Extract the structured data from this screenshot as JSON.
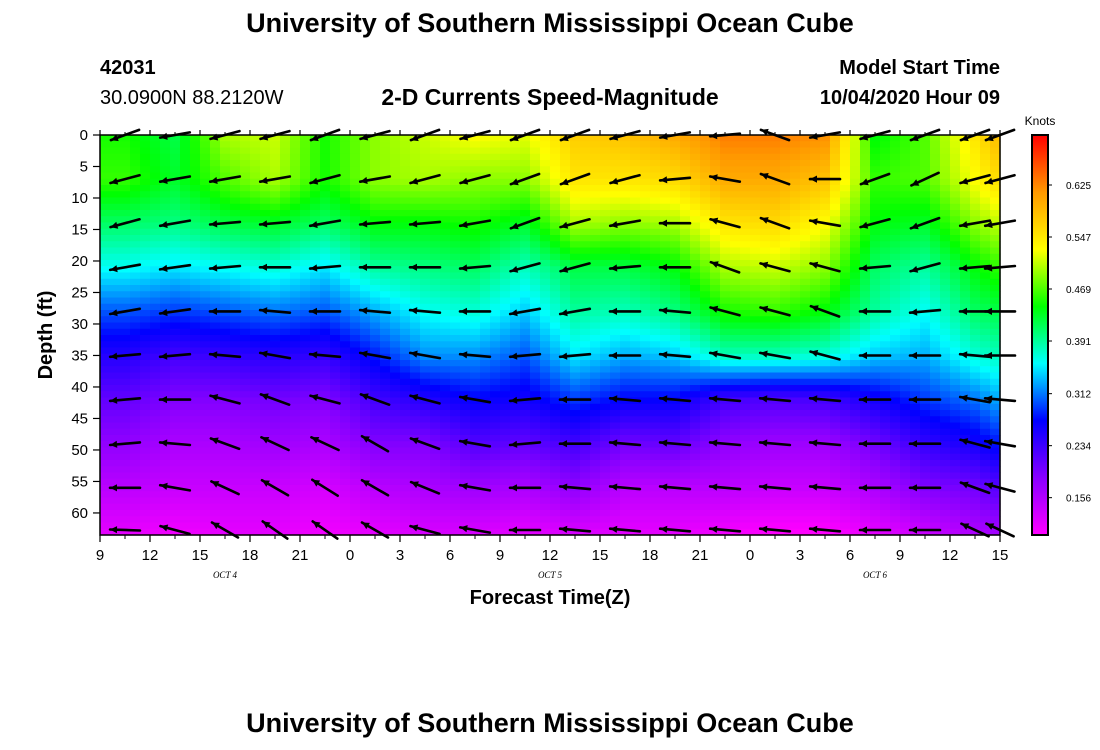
{
  "header": {
    "title": "University of Southern Mississippi Ocean Cube",
    "station_id": "42031",
    "station_position": "30.0900N 88.2120W",
    "subtitle": "2-D Currents Speed-Magnitude",
    "model_start_label": "Model Start Time",
    "model_start_value": "10/04/2020 Hour 09"
  },
  "footer": {
    "title": "University of Southern Mississippi Ocean Cube"
  },
  "chart_data": {
    "type": "heatmap",
    "title": "2-D Currents Speed-Magnitude",
    "xlabel": "Forecast Time(Z)",
    "ylabel": "Depth (ft)",
    "x_tick_labels": [
      "9",
      "12",
      "15",
      "18",
      "21",
      "0",
      "3",
      "6",
      "9",
      "12",
      "15",
      "18",
      "21",
      "0",
      "3",
      "6",
      "9",
      "12",
      "15"
    ],
    "x_hours": [
      0,
      3,
      6,
      9,
      12,
      15,
      18,
      21,
      24,
      27,
      30,
      33,
      36,
      39,
      42,
      45,
      48,
      51,
      54
    ],
    "day_labels": [
      {
        "text": "OCT 4",
        "hour": 7.5
      },
      {
        "text": "OCT 5",
        "hour": 27
      },
      {
        "text": "OCT 6",
        "hour": 46.5
      }
    ],
    "y_ticks": [
      0,
      5,
      10,
      15,
      20,
      25,
      30,
      35,
      40,
      45,
      50,
      55,
      60
    ],
    "ylim": [
      0,
      63.5
    ],
    "y_inverted": true,
    "colorbar": {
      "title": "Knots",
      "tick_values": [
        0.625,
        0.547,
        0.469,
        0.391,
        0.312,
        0.234,
        0.156
      ],
      "tick_labels": [
        "0.625",
        "0.547",
        "0.469",
        "0.391",
        "0.312",
        "0.234",
        "0.156"
      ],
      "range": [
        0.1,
        0.7
      ],
      "colormap": [
        "#ff00ff",
        "#8800ff",
        "#0000ff",
        "#00ffff",
        "#00ff00",
        "#ffff00",
        "#ff9900",
        "#ff0000"
      ]
    },
    "speed_grid": {
      "hours": [
        1.5,
        4.5,
        7.5,
        10.5,
        13.5,
        16.5,
        19.5,
        22.5,
        25.5,
        28.5,
        31.5,
        34.5,
        37.5,
        40.5,
        43.5,
        46.5,
        49.5,
        52.5,
        54
      ],
      "depths": [
        0,
        7,
        14,
        21,
        28,
        35,
        42,
        49,
        56,
        63
      ],
      "values": [
        [
          0.45,
          0.46,
          0.41,
          0.36,
          0.3,
          0.25,
          0.21,
          0.18,
          0.15,
          0.12
        ],
        [
          0.42,
          0.43,
          0.4,
          0.35,
          0.29,
          0.23,
          0.19,
          0.16,
          0.14,
          0.11
        ],
        [
          0.5,
          0.47,
          0.42,
          0.36,
          0.3,
          0.24,
          0.19,
          0.16,
          0.14,
          0.12
        ],
        [
          0.51,
          0.5,
          0.43,
          0.37,
          0.31,
          0.25,
          0.2,
          0.17,
          0.14,
          0.12
        ],
        [
          0.45,
          0.45,
          0.41,
          0.35,
          0.3,
          0.24,
          0.19,
          0.16,
          0.13,
          0.11
        ],
        [
          0.49,
          0.49,
          0.44,
          0.39,
          0.33,
          0.28,
          0.23,
          0.19,
          0.15,
          0.12
        ],
        [
          0.51,
          0.5,
          0.44,
          0.4,
          0.36,
          0.32,
          0.25,
          0.19,
          0.16,
          0.13
        ],
        [
          0.53,
          0.49,
          0.45,
          0.41,
          0.37,
          0.32,
          0.27,
          0.22,
          0.17,
          0.13
        ],
        [
          0.52,
          0.49,
          0.43,
          0.38,
          0.34,
          0.3,
          0.26,
          0.21,
          0.16,
          0.12
        ],
        [
          0.57,
          0.55,
          0.5,
          0.42,
          0.39,
          0.35,
          0.29,
          0.23,
          0.18,
          0.13
        ],
        [
          0.58,
          0.55,
          0.49,
          0.42,
          0.38,
          0.33,
          0.27,
          0.2,
          0.15,
          0.12
        ],
        [
          0.6,
          0.56,
          0.5,
          0.44,
          0.4,
          0.34,
          0.27,
          0.21,
          0.15,
          0.12
        ],
        [
          0.63,
          0.6,
          0.55,
          0.5,
          0.45,
          0.38,
          0.23,
          0.18,
          0.15,
          0.11
        ],
        [
          0.63,
          0.6,
          0.56,
          0.51,
          0.46,
          0.38,
          0.22,
          0.17,
          0.14,
          0.1
        ],
        [
          0.62,
          0.58,
          0.53,
          0.49,
          0.44,
          0.37,
          0.23,
          0.17,
          0.14,
          0.1
        ],
        [
          0.44,
          0.46,
          0.44,
          0.41,
          0.39,
          0.34,
          0.26,
          0.2,
          0.16,
          0.12
        ],
        [
          0.47,
          0.47,
          0.43,
          0.39,
          0.36,
          0.33,
          0.29,
          0.24,
          0.19,
          0.14
        ],
        [
          0.55,
          0.53,
          0.49,
          0.44,
          0.41,
          0.37,
          0.31,
          0.26,
          0.2,
          0.16
        ],
        [
          0.59,
          0.56,
          0.51,
          0.46,
          0.42,
          0.38,
          0.33,
          0.28,
          0.22,
          0.17
        ]
      ]
    },
    "vectors": {
      "hours": [
        1.5,
        4.5,
        7.5,
        10.5,
        13.5,
        16.5,
        19.5,
        22.5,
        25.5,
        28.5,
        31.5,
        34.5,
        37.5,
        40.5,
        43.5,
        46.5,
        49.5,
        52.5,
        54
      ],
      "depths": [
        0,
        7,
        14,
        21,
        28,
        35,
        42,
        49,
        56,
        63
      ],
      "direction_deg": [
        [
          200,
          195,
          195,
          190,
          190,
          185,
          185,
          185,
          180,
          178
        ],
        [
          190,
          190,
          190,
          188,
          188,
          185,
          180,
          175,
          170,
          165
        ],
        [
          195,
          190,
          185,
          185,
          180,
          175,
          165,
          160,
          155,
          150
        ],
        [
          195,
          190,
          185,
          180,
          175,
          170,
          160,
          155,
          150,
          145
        ],
        [
          200,
          195,
          190,
          185,
          180,
          175,
          165,
          155,
          148,
          145
        ],
        [
          195,
          190,
          185,
          180,
          175,
          170,
          160,
          150,
          150,
          150
        ],
        [
          200,
          195,
          185,
          180,
          175,
          170,
          165,
          160,
          158,
          165
        ],
        [
          195,
          195,
          190,
          185,
          180,
          175,
          170,
          170,
          170,
          170
        ],
        [
          200,
          200,
          200,
          195,
          190,
          185,
          185,
          185,
          180,
          180
        ],
        [
          200,
          200,
          195,
          195,
          190,
          185,
          180,
          180,
          175,
          175
        ],
        [
          195,
          195,
          190,
          185,
          180,
          180,
          175,
          175,
          175,
          175
        ],
        [
          190,
          185,
          180,
          180,
          175,
          175,
          175,
          175,
          175,
          175
        ],
        [
          185,
          170,
          165,
          160,
          165,
          170,
          175,
          175,
          175,
          175
        ],
        [
          160,
          160,
          160,
          165,
          165,
          170,
          175,
          175,
          175,
          175
        ],
        [
          190,
          180,
          170,
          165,
          160,
          165,
          175,
          175,
          175,
          175
        ],
        [
          195,
          200,
          195,
          185,
          180,
          180,
          180,
          180,
          180,
          180
        ],
        [
          200,
          205,
          200,
          195,
          185,
          180,
          180,
          180,
          180,
          180
        ],
        [
          200,
          195,
          190,
          185,
          180,
          175,
          170,
          165,
          160,
          155
        ],
        [
          200,
          195,
          190,
          185,
          180,
          180,
          175,
          170,
          165,
          155
        ]
      ]
    }
  }
}
